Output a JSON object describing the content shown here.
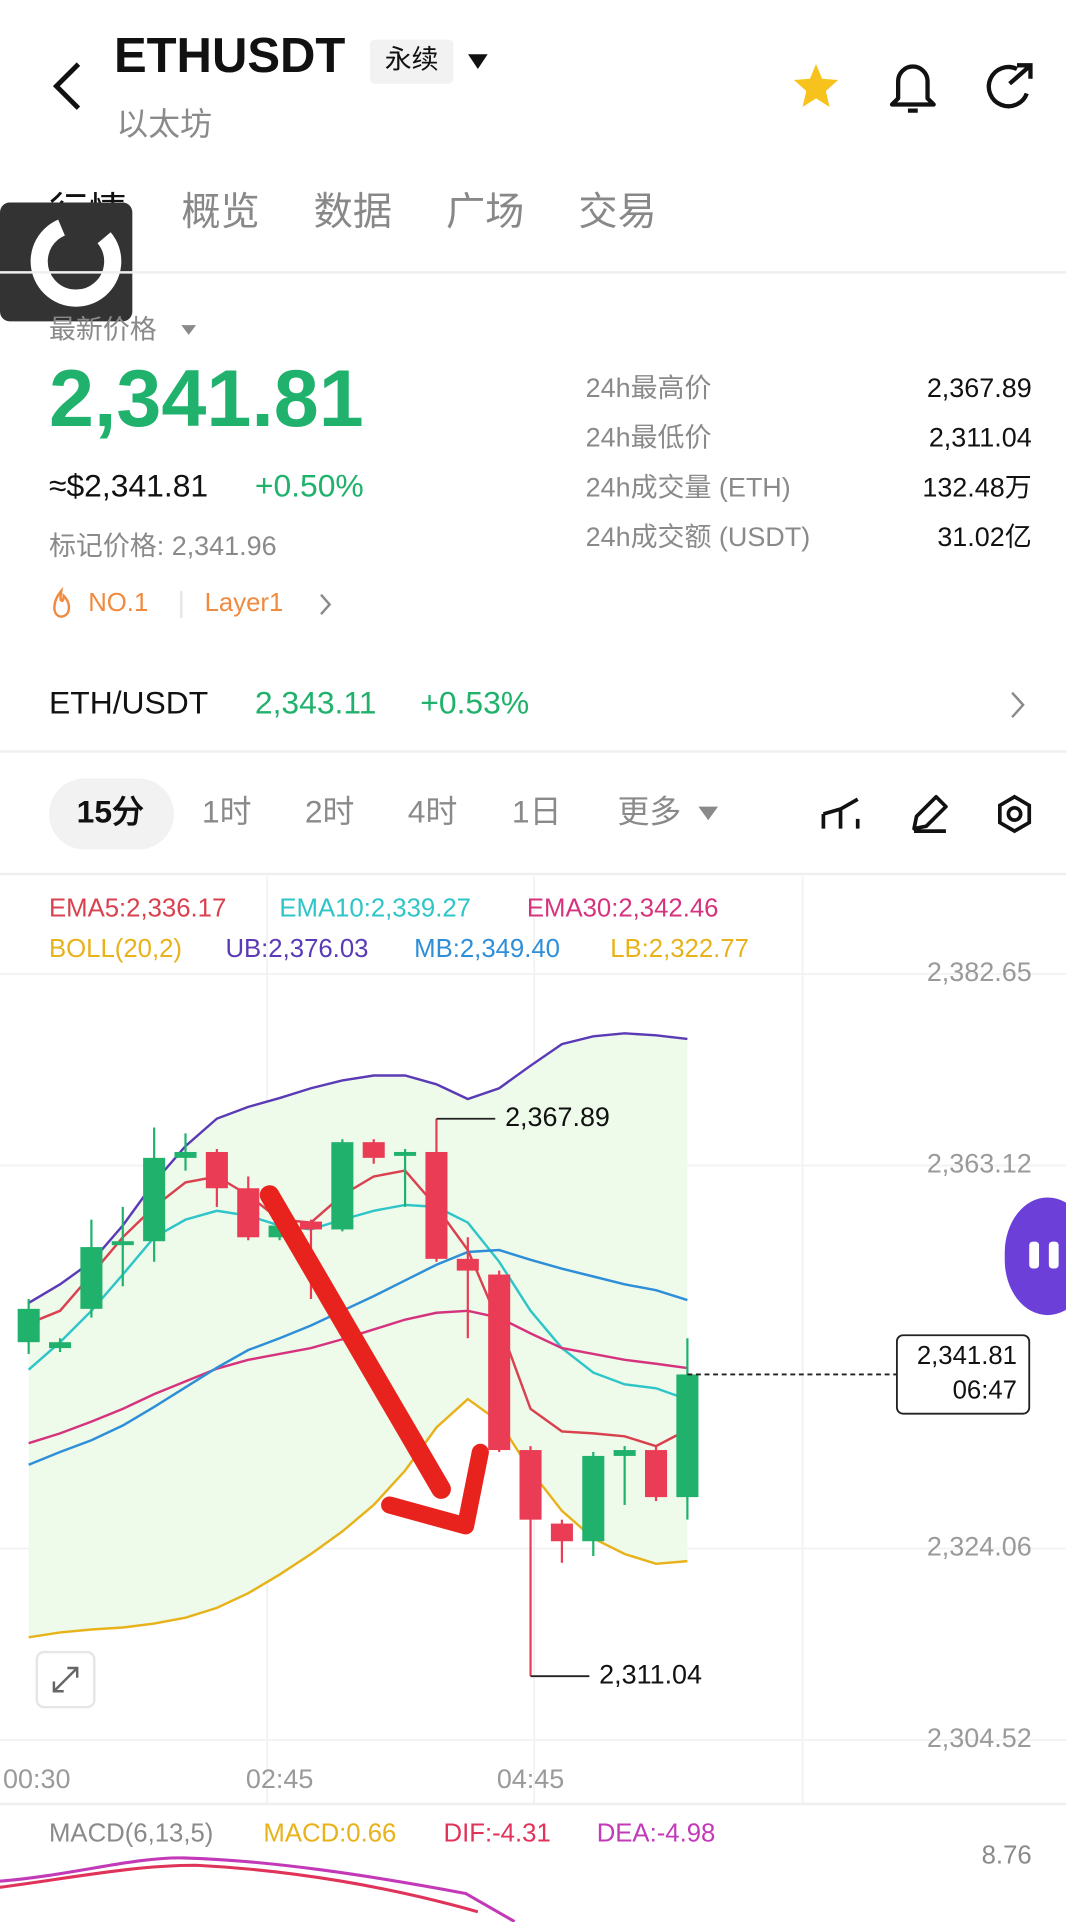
{
  "header": {
    "symbol": "ETHUSDT",
    "contract_type": "永续",
    "name": "以太坊"
  },
  "tabs": [
    "行情",
    "概览",
    "数据",
    "广场",
    "交易"
  ],
  "price": {
    "label": "最新价格",
    "last": "2,341.81",
    "usd": "≈$2,341.81",
    "change": "+0.50%",
    "mark": "标记价格: 2,341.96",
    "tags": [
      "NO.1",
      "Layer1"
    ]
  },
  "stats": [
    {
      "label": "24h最高价",
      "value": "2,367.89"
    },
    {
      "label": "24h最低价",
      "value": "2,311.04"
    },
    {
      "label": "24h成交量 (ETH)",
      "value": "132.48万"
    },
    {
      "label": "24h成交额 (USDT)",
      "value": "31.02亿"
    }
  ],
  "spot": {
    "pair": "ETH/USDT",
    "price": "2,343.11",
    "change": "+0.53%"
  },
  "intervals": [
    "15分",
    "1时",
    "2时",
    "4时",
    "1日",
    "更多"
  ],
  "chart_data": {
    "type": "candlestick",
    "categories": [
      "00:30",
      null,
      null,
      null,
      null,
      null,
      null,
      null,
      "02:45",
      null,
      null,
      null,
      null,
      null,
      null,
      null,
      "04:45",
      null,
      null,
      null,
      null,
      null
    ],
    "open": [
      2345.1,
      2344.5,
      2348.5,
      2355.0,
      2355.4,
      2363.9,
      2364.5,
      2360.8,
      2355.8,
      2357.4,
      2356.6,
      2365.5,
      2364.1,
      2364.5,
      2353.6,
      2352.0,
      2334.1,
      2326.6,
      2324.8,
      2333.5,
      2334.1,
      2329.3
    ],
    "high": [
      2349.5,
      2345.5,
      2357.6,
      2358.9,
      2367.0,
      2366.4,
      2364.8,
      2362.0,
      2357.6,
      2357.6,
      2365.8,
      2365.8,
      2364.8,
      2367.89,
      2355.8,
      2352.4,
      2334.5,
      2327.0,
      2333.9,
      2334.5,
      2334.5,
      2345.5
    ],
    "low": [
      2343.9,
      2344.1,
      2347.6,
      2350.8,
      2353.3,
      2362.6,
      2358.9,
      2355.5,
      2355.5,
      2349.5,
      2356.4,
      2363.3,
      2358.9,
      2353.3,
      2345.5,
      2333.9,
      2311.04,
      2322.6,
      2323.3,
      2328.5,
      2328.9,
      2327.0
    ],
    "close": [
      2348.5,
      2345.1,
      2354.8,
      2355.4,
      2363.9,
      2364.5,
      2360.8,
      2355.8,
      2357.0,
      2356.6,
      2365.5,
      2363.9,
      2364.5,
      2353.6,
      2352.4,
      2334.1,
      2327.0,
      2324.8,
      2333.5,
      2334.1,
      2329.3,
      2341.81
    ],
    "up_color": "#20b26c",
    "down_color": "#ea3d55",
    "series": [
      {
        "name": "EMA5:2,336.17",
        "color": "#d9414f",
        "values": [
          2347.0,
          2348.3,
          2352.0,
          2355.8,
          2358.9,
          2361.4,
          2362.0,
          2360.1,
          2357.6,
          2357.3,
          2360.1,
          2362.0,
          2362.6,
          2358.9,
          2354.5,
          2347.0,
          2338.3,
          2336.0,
          2335.8,
          2335.5,
          2334.5,
          2336.17
        ]
      },
      {
        "name": "EMA10:2,339.27",
        "color": "#2ec5c8",
        "values": [
          2342.3,
          2345.1,
          2348.3,
          2352.0,
          2355.8,
          2357.6,
          2358.5,
          2358.0,
          2357.0,
          2356.6,
          2357.6,
          2358.5,
          2359.1,
          2358.9,
          2357.3,
          2353.3,
          2348.3,
          2344.5,
          2342.0,
          2340.8,
          2340.4,
          2339.27
        ]
      },
      {
        "name": "EMA30:2,342.46",
        "color": "#d6337e",
        "values": [
          2334.8,
          2335.8,
          2337.0,
          2338.3,
          2339.8,
          2341.1,
          2342.4,
          2343.3,
          2343.9,
          2344.5,
          2345.4,
          2346.4,
          2347.4,
          2348.1,
          2348.3,
          2347.6,
          2346.0,
          2344.5,
          2343.9,
          2343.3,
          2342.9,
          2342.46
        ]
      },
      {
        "name": "UB:2,376.03",
        "color": "#5b3bb5",
        "values": [
          2349.1,
          2351.0,
          2353.3,
          2357.0,
          2361.4,
          2365.1,
          2367.9,
          2369.1,
          2370.0,
          2371.0,
          2371.8,
          2372.3,
          2372.3,
          2371.4,
          2369.9,
          2371.0,
          2373.3,
          2375.5,
          2376.3,
          2376.6,
          2376.4,
          2376.03
        ]
      },
      {
        "name": "MB:2,349.40",
        "color": "#2e8fd8",
        "values": [
          2332.6,
          2333.9,
          2335.1,
          2336.6,
          2338.5,
          2340.5,
          2342.5,
          2344.3,
          2345.5,
          2346.8,
          2348.3,
          2349.8,
          2351.4,
          2353.0,
          2354.3,
          2354.5,
          2353.5,
          2352.6,
          2351.8,
          2351.0,
          2350.4,
          2349.4
        ]
      },
      {
        "name": "LB:2,322.77",
        "color": "#e8b21a",
        "values": [
          2315.0,
          2315.5,
          2315.8,
          2316.0,
          2316.4,
          2317.0,
          2318.0,
          2319.5,
          2321.4,
          2323.5,
          2325.8,
          2328.5,
          2332.0,
          2336.4,
          2339.3,
          2337.0,
          2332.0,
          2327.9,
          2325.1,
          2323.5,
          2322.5,
          2322.77
        ]
      }
    ],
    "boll_label": "BOLL(20,2)",
    "band_fill": "#eefaea",
    "ylim": [
      2303.0,
      2392.6
    ],
    "yticks": [
      {
        "value": 2304.52,
        "label": "2,304.52"
      },
      {
        "value": 2324.06,
        "label": "2,324.06"
      },
      {
        "value": 2363.12,
        "label": "2,363.12"
      },
      {
        "value": 2382.65,
        "label": "2,382.65"
      }
    ],
    "grid": true,
    "current_price": {
      "value": 2341.81,
      "label": "2,341.81",
      "time": "06:47"
    },
    "annotations": [
      {
        "value": 2367.89,
        "label": "2,367.89"
      },
      {
        "value": 2311.04,
        "label": "2,311.04"
      }
    ]
  },
  "macd": {
    "title": "MACD(6,13,5)",
    "macd": "MACD:0.66",
    "dif": "DIF:-4.31",
    "dea": "DEA:-4.98",
    "axis_label": "8.76"
  }
}
